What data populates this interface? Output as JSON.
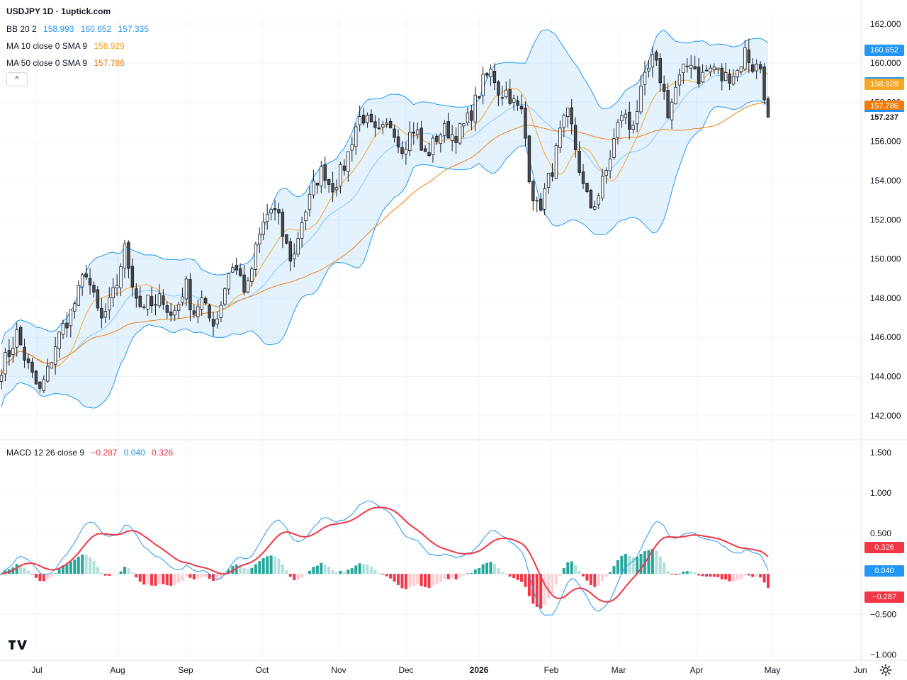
{
  "header": {
    "title": "USDJPY 1D · 1uptick.com",
    "bb": {
      "name": "BB 20 2",
      "values": [
        "158.993",
        "160.652",
        "157.335"
      ],
      "color": "#2196f3"
    },
    "ma10": {
      "name": "MA 10 close 0 SMA 9",
      "value": "158.929",
      "color": "#f5a623"
    },
    "ma50": {
      "name": "MA 50 close 0 SMA 9",
      "value": "157.786",
      "color": "#ef7d0c"
    },
    "collapse_label": "^"
  },
  "macd_legend": {
    "name": "MACD 12 26 close 9",
    "values": [
      "−0.287",
      "0.040",
      "0.326"
    ],
    "colors": [
      "#f23645",
      "#2196f3",
      "#f23645"
    ]
  },
  "price_badges": [
    {
      "label": "160.652",
      "color": "#2196f3",
      "y": 160.652
    },
    {
      "label": "158.993",
      "color": "#2196f3",
      "y": 158.993
    },
    {
      "label": "158.929",
      "color": "#f5a623",
      "y": 158.929
    },
    {
      "label": "157.786",
      "color": "#ef7d0c",
      "y": 157.786
    },
    {
      "label": "157.335",
      "color": "#2196f3",
      "y": 157.335
    },
    {
      "label": "157.237",
      "color": "#ffffff",
      "text_color": "#131722",
      "y": 157.237
    }
  ],
  "macd_badges": [
    {
      "label": "0.326",
      "color": "#f23645",
      "y": 0.326
    },
    {
      "label": "0.040",
      "color": "#2196f3",
      "y": 0.04
    },
    {
      "label": "−0.287",
      "color": "#f23645",
      "y": -0.287
    }
  ],
  "chart_data": {
    "type": "candlestick",
    "price_axis": {
      "ticks": [
        "162.000",
        "160.000",
        "158.000",
        "156.000",
        "154.000",
        "152.000",
        "150.000",
        "148.000",
        "146.000",
        "144.000",
        "142.000"
      ],
      "range": [
        140.8,
        162.5
      ]
    },
    "macd_axis": {
      "ticks": [
        "1.500",
        "1.000",
        "0.500",
        "0.000",
        "−0.500",
        "−1.000"
      ],
      "range": [
        -1.05,
        1.65
      ]
    },
    "time_axis": {
      "labels": [
        "Jul",
        "Aug",
        "Sep",
        "Oct",
        "Nov",
        "Dec",
        "2026",
        "Feb",
        "Mar",
        "Apr",
        "May",
        "Jun"
      ],
      "bold": [
        "2026"
      ]
    },
    "colors": {
      "bb_fill": "rgba(33,150,243,0.12)",
      "bb_line": "#2196f3",
      "ma10": "#f5a623",
      "ma50": "#ef7d0c",
      "macd": "#2196f3",
      "signal": "#f23645",
      "hist_up_strong": "#26a69a",
      "hist_up_weak": "#b2dfdb",
      "hist_dn_strong": "#f23645",
      "hist_dn_weak": "#ffcdd2"
    },
    "close_path": [
      144.5,
      145.2,
      146.2,
      145.0,
      144.0,
      143.2,
      144.2,
      145.6,
      146.5,
      147.2,
      148.2,
      149.5,
      148.0,
      146.8,
      147.6,
      148.6,
      150.6,
      149.0,
      147.6,
      147.8,
      147.4,
      148.2,
      147.0,
      147.6,
      148.8,
      147.2,
      148.0,
      147.0,
      146.8,
      148.4,
      149.8,
      149.2,
      148.2,
      150.2,
      151.6,
      152.6,
      152.2,
      150.8,
      149.8,
      151.8,
      152.8,
      154.0,
      154.6,
      153.6,
      154.2,
      155.0,
      156.6,
      157.4,
      156.8,
      156.2,
      156.6,
      157.0,
      155.6,
      156.2,
      156.8,
      155.2,
      155.6,
      156.4,
      156.6,
      156.3,
      156.6,
      157.2,
      158.2,
      159.2,
      159.6,
      158.4,
      158.6,
      157.8,
      157.4,
      153.8,
      152.4,
      153.6,
      154.8,
      156.6,
      157.4,
      155.4,
      153.4,
      152.6,
      153.4,
      154.6,
      156.2,
      157.6,
      156.6,
      157.8,
      159.2,
      160.2,
      159.2,
      157.4,
      158.8,
      159.6,
      160.2,
      159.2,
      159.6,
      159.8,
      159.2,
      159.4,
      159.6,
      160.6,
      159.8,
      159.8,
      157.2
    ],
    "time_labels_x": [
      52,
      166,
      262,
      370,
      478,
      573,
      676,
      778,
      873,
      983,
      1090,
      1214
    ]
  }
}
